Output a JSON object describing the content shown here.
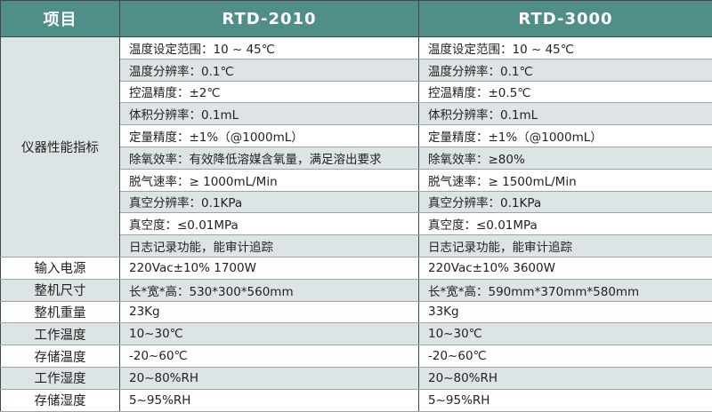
{
  "header": {
    "item": "项目",
    "model_a": "RTD-2010",
    "model_b": "RTD-3000"
  },
  "performance": {
    "label": "仪器性能指标",
    "rows": [
      {
        "a": "温度设定范围：10 ~ 45℃",
        "b": "温度设定范围：10 ~ 45℃"
      },
      {
        "a": "温度分辨率：0.1℃",
        "b": "温度分辨率：0.1℃"
      },
      {
        "a": "控温精度：±2℃",
        "b": "控温精度：±0.5℃"
      },
      {
        "a": "体积分辨率：0.1mL",
        "b": "体积分辨率：0.1mL"
      },
      {
        "a": "定量精度：±1%（@1000mL）",
        "b": "定量精度：±1%（@1000mL）"
      },
      {
        "a": "除氧效率：有效降低溶媒含氧量，满足溶出要求",
        "b": "除氧效率：≥80%"
      },
      {
        "a": "脱气速率：≥ 1000mL/Min",
        "b": "脱气速率：≥ 1500mL/Min"
      },
      {
        "a": "真空分辨率：0.1KPa",
        "b": "真空分辨率：0.1KPa"
      },
      {
        "a": "真空度：≤0.01MPa",
        "b": "真空度：≤0.01MPa"
      },
      {
        "a": "日志记录功能，能审计追踪",
        "b": "日志记录功能，能审计追踪"
      }
    ]
  },
  "specs": [
    {
      "label": "输入电源",
      "a": "220Vac±10% 1700W",
      "b": "220Vac±10% 3600W"
    },
    {
      "label": "整机尺寸",
      "a": "长*宽*高：530*300*560mm",
      "b": "长*宽*高：590mm*370mm*580mm"
    },
    {
      "label": "整机重量",
      "a": "23Kg",
      "b": "33Kg"
    },
    {
      "label": "工作温度",
      "a": "10~30℃",
      "b": "10~30℃"
    },
    {
      "label": "存储温度",
      "a": "-20~60℃",
      "b": "-20~60℃"
    },
    {
      "label": "工作湿度",
      "a": "20~80%RH",
      "b": "20~80%RH"
    },
    {
      "label": "存储湿度",
      "a": "5~95%RH",
      "b": "5~95%RH"
    }
  ],
  "colors": {
    "header_bg": "#4f8f88",
    "stripe": "#dde4e6"
  }
}
